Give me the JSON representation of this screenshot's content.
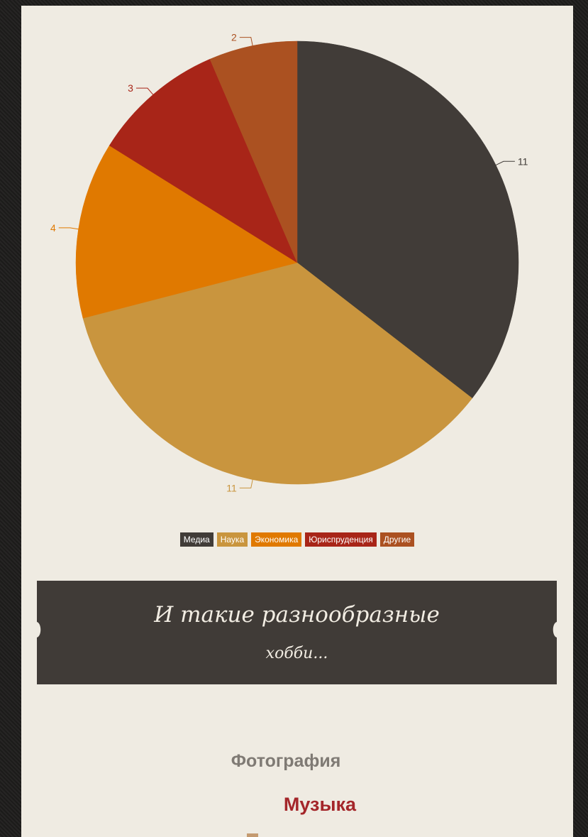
{
  "chart_data": {
    "type": "pie",
    "title": "",
    "slices": [
      {
        "label": "Медиа",
        "value": 11,
        "color": "#413c38"
      },
      {
        "label": "Наука",
        "value": 11,
        "color": "#c9953e"
      },
      {
        "label": "Экономика",
        "value": 4,
        "color": "#e07900"
      },
      {
        "label": "Юриспруденция",
        "value": 3,
        "color": "#a82518"
      },
      {
        "label": "Другие",
        "value": 2,
        "color": "#ab5121"
      }
    ],
    "legend_position": "bottom-center"
  },
  "banner": {
    "title": "И такие разнообразные",
    "subtitle": "хобби..."
  },
  "hobbies": [
    "Фотография",
    "Музыка"
  ]
}
